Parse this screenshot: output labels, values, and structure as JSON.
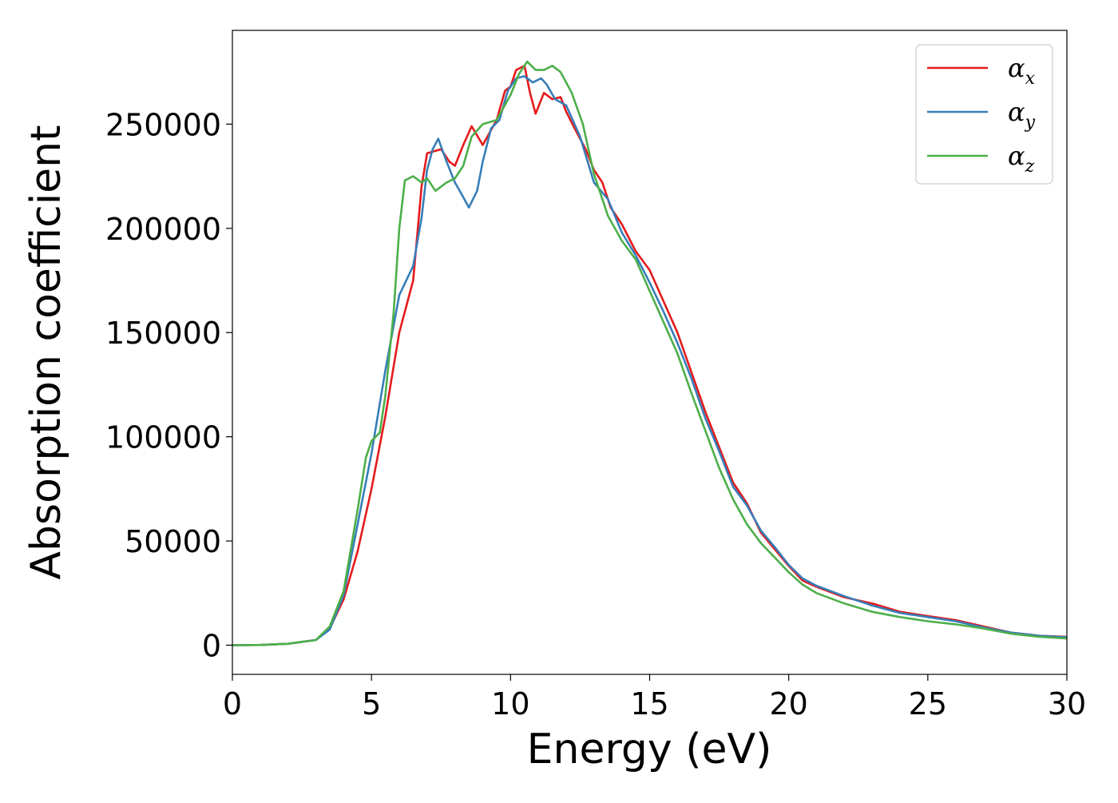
{
  "chart_data": {
    "type": "line",
    "xlabel": "Energy (eV)",
    "ylabel": "Absorption coefficient",
    "xlim": [
      0,
      30
    ],
    "ylim": [
      -14000,
      295000
    ],
    "xticks": [
      0,
      5,
      10,
      15,
      20,
      25,
      30
    ],
    "yticks": [
      0,
      50000,
      100000,
      150000,
      200000,
      250000
    ],
    "grid": false,
    "legend_position": "top-right",
    "series": [
      {
        "name": "αx",
        "label_main": "α",
        "label_sub": "x",
        "color": "#e41a1c",
        "points": [
          [
            0,
            0
          ],
          [
            1,
            100
          ],
          [
            2,
            700
          ],
          [
            3,
            2500
          ],
          [
            3.5,
            8000
          ],
          [
            4,
            22000
          ],
          [
            4.5,
            45000
          ],
          [
            5,
            75000
          ],
          [
            5.5,
            110000
          ],
          [
            6,
            150000
          ],
          [
            6.5,
            175000
          ],
          [
            6.8,
            220000
          ],
          [
            7,
            236000
          ],
          [
            7.5,
            238000
          ],
          [
            7.8,
            232000
          ],
          [
            8,
            230000
          ],
          [
            8.3,
            240000
          ],
          [
            8.6,
            249000
          ],
          [
            9,
            240000
          ],
          [
            9.5,
            252000
          ],
          [
            9.8,
            266000
          ],
          [
            10,
            268000
          ],
          [
            10.2,
            276000
          ],
          [
            10.5,
            278000
          ],
          [
            10.7,
            265000
          ],
          [
            10.9,
            255000
          ],
          [
            11.2,
            265000
          ],
          [
            11.5,
            262000
          ],
          [
            11.8,
            263000
          ],
          [
            12,
            256000
          ],
          [
            12.3,
            248000
          ],
          [
            12.7,
            238000
          ],
          [
            13,
            228000
          ],
          [
            13.3,
            222000
          ],
          [
            13.6,
            210000
          ],
          [
            14,
            202000
          ],
          [
            14.5,
            189000
          ],
          [
            15,
            180000
          ],
          [
            15.5,
            165000
          ],
          [
            16,
            150000
          ],
          [
            16.5,
            131000
          ],
          [
            17,
            112000
          ],
          [
            17.5,
            95000
          ],
          [
            18,
            78000
          ],
          [
            18.5,
            68000
          ],
          [
            19,
            54000
          ],
          [
            19.5,
            46000
          ],
          [
            20,
            38000
          ],
          [
            20.5,
            31000
          ],
          [
            21,
            28000
          ],
          [
            22,
            23000
          ],
          [
            23,
            20000
          ],
          [
            24,
            16000
          ],
          [
            25,
            14000
          ],
          [
            26,
            12000
          ],
          [
            27,
            9000
          ],
          [
            28,
            6000
          ],
          [
            29,
            4500
          ],
          [
            30,
            4000
          ]
        ]
      },
      {
        "name": "αy",
        "label_main": "α",
        "label_sub": "y",
        "color": "#377eb8",
        "points": [
          [
            0,
            0
          ],
          [
            1,
            100
          ],
          [
            2,
            700
          ],
          [
            3,
            2500
          ],
          [
            3.5,
            7500
          ],
          [
            4,
            24000
          ],
          [
            4.5,
            58000
          ],
          [
            5,
            92000
          ],
          [
            5.5,
            132000
          ],
          [
            6,
            168000
          ],
          [
            6.5,
            182000
          ],
          [
            6.8,
            205000
          ],
          [
            7,
            228000
          ],
          [
            7.2,
            238000
          ],
          [
            7.4,
            243000
          ],
          [
            7.7,
            232000
          ],
          [
            8,
            222000
          ],
          [
            8.3,
            215000
          ],
          [
            8.5,
            210000
          ],
          [
            8.8,
            218000
          ],
          [
            9,
            232000
          ],
          [
            9.3,
            248000
          ],
          [
            9.6,
            252000
          ],
          [
            9.9,
            266000
          ],
          [
            10.2,
            272000
          ],
          [
            10.5,
            273000
          ],
          [
            10.8,
            270000
          ],
          [
            11.1,
            272000
          ],
          [
            11.3,
            269000
          ],
          [
            11.6,
            262000
          ],
          [
            12,
            259000
          ],
          [
            12.5,
            244000
          ],
          [
            13,
            222000
          ],
          [
            13.5,
            214000
          ],
          [
            14,
            198000
          ],
          [
            14.5,
            187000
          ],
          [
            15,
            174000
          ],
          [
            15.5,
            160000
          ],
          [
            16,
            145000
          ],
          [
            16.5,
            128000
          ],
          [
            17,
            109000
          ],
          [
            17.5,
            93000
          ],
          [
            18,
            76000
          ],
          [
            18.5,
            67000
          ],
          [
            19,
            55000
          ],
          [
            19.5,
            47000
          ],
          [
            20,
            38500
          ],
          [
            20.5,
            32000
          ],
          [
            21,
            28500
          ],
          [
            22,
            23500
          ],
          [
            23,
            19000
          ],
          [
            24,
            15500
          ],
          [
            25,
            13500
          ],
          [
            26,
            11500
          ],
          [
            27,
            8500
          ],
          [
            28,
            6000
          ],
          [
            29,
            4500
          ],
          [
            30,
            3800
          ]
        ]
      },
      {
        "name": "αz",
        "label_main": "α",
        "label_sub": "z",
        "color": "#4daf4a",
        "points": [
          [
            0,
            0
          ],
          [
            1,
            100
          ],
          [
            2,
            700
          ],
          [
            3,
            2500
          ],
          [
            3.5,
            9000
          ],
          [
            4,
            26000
          ],
          [
            4.5,
            65000
          ],
          [
            4.8,
            90000
          ],
          [
            5,
            98000
          ],
          [
            5.3,
            102000
          ],
          [
            5.5,
            120000
          ],
          [
            5.8,
            160000
          ],
          [
            6,
            200000
          ],
          [
            6.2,
            223000
          ],
          [
            6.5,
            225000
          ],
          [
            6.8,
            222000
          ],
          [
            7,
            224000
          ],
          [
            7.3,
            218000
          ],
          [
            7.7,
            222000
          ],
          [
            8,
            224000
          ],
          [
            8.3,
            230000
          ],
          [
            8.6,
            244000
          ],
          [
            9,
            250000
          ],
          [
            9.5,
            252000
          ],
          [
            10,
            264000
          ],
          [
            10.3,
            274000
          ],
          [
            10.6,
            280000
          ],
          [
            10.9,
            276000
          ],
          [
            11.2,
            276000
          ],
          [
            11.5,
            278000
          ],
          [
            11.8,
            275000
          ],
          [
            12.2,
            265000
          ],
          [
            12.6,
            250000
          ],
          [
            13,
            226000
          ],
          [
            13.5,
            206000
          ],
          [
            14,
            194000
          ],
          [
            14.5,
            185000
          ],
          [
            15,
            170000
          ],
          [
            15.5,
            155000
          ],
          [
            16,
            140000
          ],
          [
            16.5,
            121000
          ],
          [
            17,
            103000
          ],
          [
            17.5,
            85000
          ],
          [
            18,
            70000
          ],
          [
            18.5,
            58000
          ],
          [
            19,
            49000
          ],
          [
            19.5,
            42000
          ],
          [
            20,
            35000
          ],
          [
            20.5,
            29000
          ],
          [
            21,
            25000
          ],
          [
            22,
            20000
          ],
          [
            23,
            16000
          ],
          [
            24,
            13500
          ],
          [
            25,
            11500
          ],
          [
            26,
            10000
          ],
          [
            27,
            8000
          ],
          [
            28,
            5500
          ],
          [
            29,
            4000
          ],
          [
            30,
            3200
          ]
        ]
      }
    ]
  }
}
